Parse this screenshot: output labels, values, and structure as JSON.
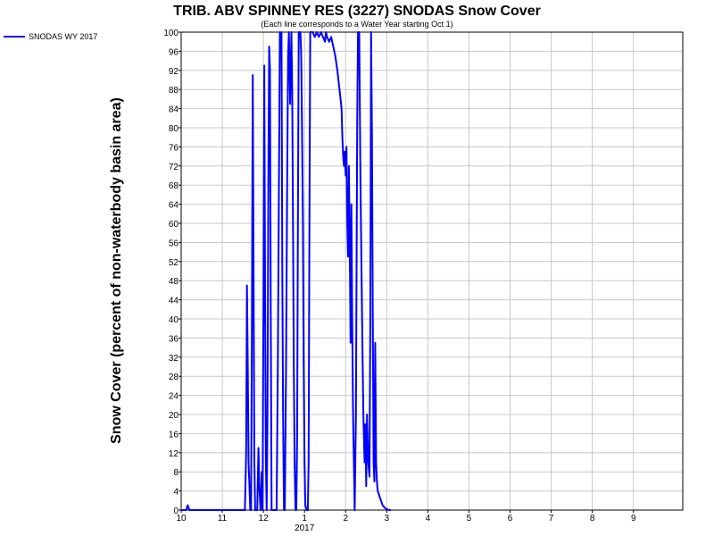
{
  "chart_data": {
    "type": "line",
    "title": "TRIB. ABV SPINNEY RES (3227) SNODAS Snow Cover",
    "subtitle": "(Each line corresponds to a Water Year starting Oct 1)",
    "ylabel": "Snow Cover (percent of non-waterbody basin area)",
    "xlabel": "",
    "ylim": [
      0,
      100
    ],
    "y_ticks": [
      0,
      4,
      8,
      12,
      16,
      20,
      24,
      28,
      32,
      36,
      40,
      44,
      48,
      52,
      56,
      60,
      64,
      68,
      72,
      76,
      80,
      84,
      88,
      92,
      96,
      100
    ],
    "x_ticks": [
      {
        "label": "10",
        "month": 10
      },
      {
        "label": "11",
        "month": 11
      },
      {
        "label": "12",
        "month": 12
      },
      {
        "label": "1",
        "month": 13
      },
      {
        "label": "2",
        "month": 14
      },
      {
        "label": "3",
        "month": 15
      },
      {
        "label": "4",
        "month": 16
      },
      {
        "label": "5",
        "month": 17
      },
      {
        "label": "6",
        "month": 18
      },
      {
        "label": "7",
        "month": 19
      },
      {
        "label": "8",
        "month": 20
      },
      {
        "label": "9",
        "month": 21
      }
    ],
    "x_year_label": "2017",
    "xlim_months": [
      10,
      22.2
    ],
    "grid": true,
    "legend_position": "top-left",
    "series": [
      {
        "name": "SNODAS WY 2017",
        "color": "#0000ff",
        "points": [
          [
            10.0,
            0
          ],
          [
            10.12,
            0
          ],
          [
            10.16,
            1
          ],
          [
            10.2,
            0
          ],
          [
            11.55,
            0
          ],
          [
            11.58,
            12
          ],
          [
            11.6,
            47
          ],
          [
            11.62,
            30
          ],
          [
            11.64,
            10
          ],
          [
            11.66,
            5
          ],
          [
            11.68,
            0
          ],
          [
            11.7,
            0
          ],
          [
            11.72,
            35
          ],
          [
            11.74,
            91
          ],
          [
            11.76,
            50
          ],
          [
            11.78,
            10
          ],
          [
            11.8,
            0
          ],
          [
            11.85,
            0
          ],
          [
            11.88,
            13
          ],
          [
            11.9,
            5
          ],
          [
            11.93,
            0
          ],
          [
            11.96,
            8
          ],
          [
            11.98,
            0
          ],
          [
            12.0,
            40
          ],
          [
            12.02,
            93
          ],
          [
            12.04,
            45
          ],
          [
            12.06,
            10
          ],
          [
            12.08,
            0
          ],
          [
            12.1,
            20
          ],
          [
            12.12,
            70
          ],
          [
            12.14,
            97
          ],
          [
            12.16,
            92
          ],
          [
            12.18,
            40
          ],
          [
            12.2,
            0
          ],
          [
            12.25,
            0
          ],
          [
            12.3,
            0
          ],
          [
            12.32,
            0
          ],
          [
            12.35,
            30
          ],
          [
            12.38,
            70
          ],
          [
            12.4,
            100
          ],
          [
            12.42,
            98
          ],
          [
            12.44,
            100
          ],
          [
            12.46,
            50
          ],
          [
            12.48,
            20
          ],
          [
            12.5,
            0
          ],
          [
            12.52,
            0
          ],
          [
            12.55,
            30
          ],
          [
            12.58,
            70
          ],
          [
            12.6,
            95
          ],
          [
            12.62,
            100
          ],
          [
            12.65,
            85
          ],
          [
            12.68,
            100
          ],
          [
            12.7,
            88
          ],
          [
            12.72,
            60
          ],
          [
            12.74,
            30
          ],
          [
            12.76,
            10
          ],
          [
            12.78,
            0
          ],
          [
            12.8,
            0
          ],
          [
            12.82,
            15
          ],
          [
            12.84,
            60
          ],
          [
            12.86,
            100
          ],
          [
            12.88,
            100
          ],
          [
            12.9,
            100
          ],
          [
            12.92,
            95
          ],
          [
            12.94,
            80
          ],
          [
            12.96,
            60
          ],
          [
            12.98,
            30
          ],
          [
            13.0,
            10
          ],
          [
            13.02,
            1
          ],
          [
            13.05,
            0
          ],
          [
            13.08,
            0
          ],
          [
            13.1,
            10
          ],
          [
            13.12,
            60
          ],
          [
            13.14,
            100
          ],
          [
            13.2,
            100
          ],
          [
            13.25,
            99
          ],
          [
            13.3,
            100
          ],
          [
            13.35,
            99
          ],
          [
            13.4,
            100
          ],
          [
            13.45,
            99
          ],
          [
            13.5,
            98
          ],
          [
            13.52,
            100
          ],
          [
            13.55,
            99
          ],
          [
            13.6,
            98
          ],
          [
            13.65,
            99
          ],
          [
            13.7,
            97
          ],
          [
            13.75,
            95
          ],
          [
            13.8,
            92
          ],
          [
            13.85,
            88
          ],
          [
            13.9,
            84
          ],
          [
            13.92,
            78
          ],
          [
            13.94,
            74
          ],
          [
            13.96,
            72
          ],
          [
            13.98,
            75
          ],
          [
            14.0,
            70
          ],
          [
            14.02,
            76
          ],
          [
            14.04,
            60
          ],
          [
            14.06,
            53
          ],
          [
            14.08,
            72
          ],
          [
            14.1,
            55
          ],
          [
            14.12,
            35
          ],
          [
            14.14,
            64
          ],
          [
            14.16,
            40
          ],
          [
            14.18,
            20
          ],
          [
            14.2,
            10
          ],
          [
            14.22,
            0
          ],
          [
            14.25,
            20
          ],
          [
            14.28,
            80
          ],
          [
            14.3,
            100
          ],
          [
            14.33,
            100
          ],
          [
            14.36,
            70
          ],
          [
            14.4,
            40
          ],
          [
            14.43,
            20
          ],
          [
            14.46,
            10
          ],
          [
            14.48,
            18
          ],
          [
            14.5,
            5
          ],
          [
            14.52,
            20
          ],
          [
            14.55,
            10
          ],
          [
            14.58,
            7
          ],
          [
            14.6,
            40
          ],
          [
            14.62,
            100
          ],
          [
            14.64,
            80
          ],
          [
            14.66,
            40
          ],
          [
            14.68,
            10
          ],
          [
            14.7,
            6
          ],
          [
            14.72,
            35
          ],
          [
            14.74,
            10
          ],
          [
            14.76,
            6
          ],
          [
            14.78,
            4
          ],
          [
            14.82,
            3
          ],
          [
            14.86,
            2
          ],
          [
            14.9,
            1
          ],
          [
            14.95,
            0.5
          ],
          [
            15.0,
            0.2
          ],
          [
            15.05,
            0
          ],
          [
            15.1,
            0
          ]
        ]
      }
    ]
  }
}
